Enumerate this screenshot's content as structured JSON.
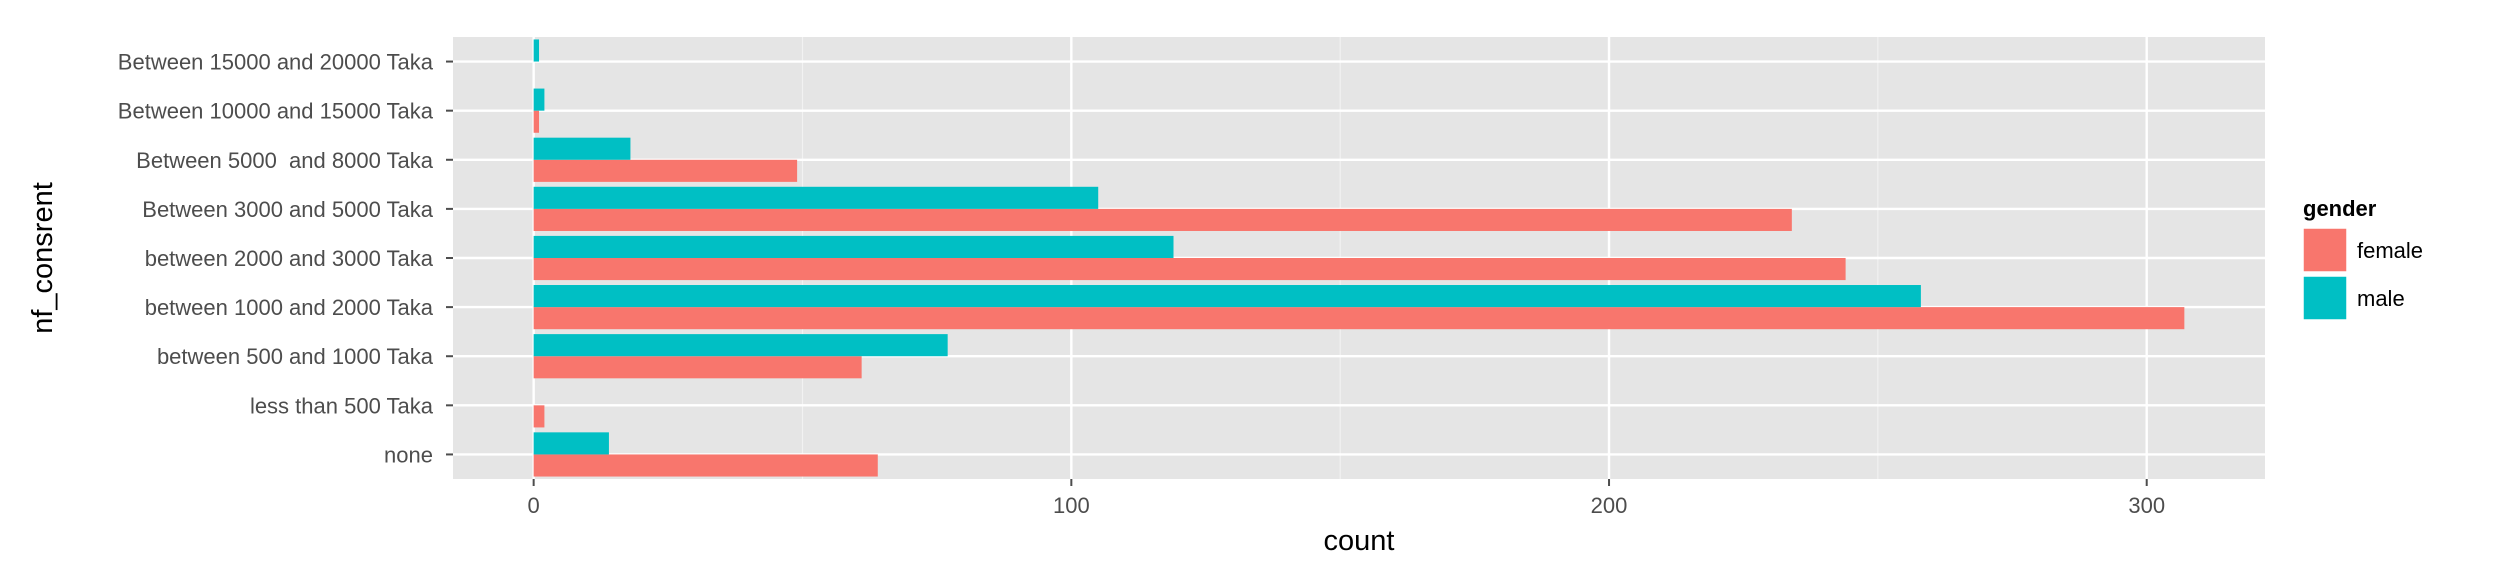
{
  "chart_data": {
    "type": "bar",
    "orientation": "horizontal",
    "xlabel": "count",
    "ylabel": "nf_consrent",
    "xlim": [
      -15,
      322
    ],
    "xticks": [
      0,
      100,
      200,
      300
    ],
    "grid": true,
    "legend_position": "right",
    "legend_title": "gender",
    "categories": [
      "none",
      "less than 500 Taka",
      "between 500 and 1000 Taka",
      "between 1000 and 2000 Taka",
      "between 2000 and 3000 Taka",
      "Between 3000 and 5000 Taka",
      "Between 5000  and 8000 Taka",
      "Between 10000 and 15000 Taka",
      "Between 15000 and 20000 Taka"
    ],
    "series": [
      {
        "name": "female",
        "color": "#F8766D",
        "values": [
          64,
          2,
          61,
          307,
          244,
          234,
          49,
          1,
          0
        ]
      },
      {
        "name": "male",
        "color": "#00BFC4",
        "values": [
          14,
          0,
          77,
          258,
          119,
          105,
          18,
          2,
          1
        ]
      }
    ]
  }
}
